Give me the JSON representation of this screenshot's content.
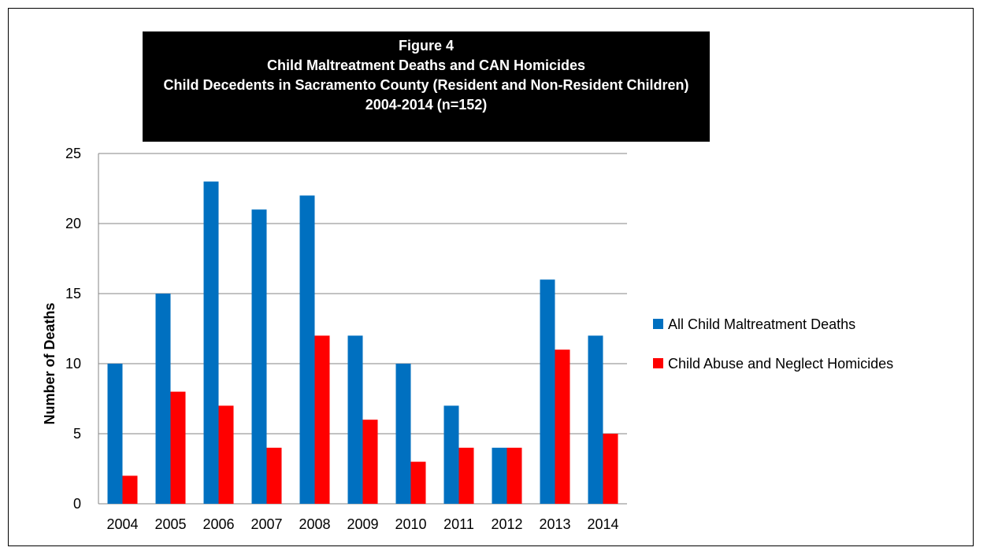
{
  "chart_data": {
    "type": "bar",
    "title_lines": [
      "Figure 4",
      "Child Maltreatment Deaths and CAN Homicides",
      "Child Decedents in Sacramento County (Resident and Non-Resident Children)",
      "2004-2014 (n=152)"
    ],
    "ylabel": "Number of Deaths",
    "xlabel": "",
    "ylim": [
      0,
      25
    ],
    "yticks": [
      0,
      5,
      10,
      15,
      20,
      25
    ],
    "grid": true,
    "legend_position": "right",
    "categories": [
      "2004",
      "2005",
      "2006",
      "2007",
      "2008",
      "2009",
      "2010",
      "2011",
      "2012",
      "2013",
      "2014"
    ],
    "series": [
      {
        "name": "All Child Maltreatment Deaths",
        "color": "#0070c0",
        "values": [
          10,
          15,
          23,
          21,
          22,
          12,
          10,
          7,
          4,
          16,
          12
        ]
      },
      {
        "name": "Child Abuse and Neglect Homicides",
        "color": "#ff0000",
        "values": [
          2,
          8,
          7,
          4,
          12,
          6,
          3,
          4,
          4,
          11,
          5
        ]
      }
    ]
  }
}
